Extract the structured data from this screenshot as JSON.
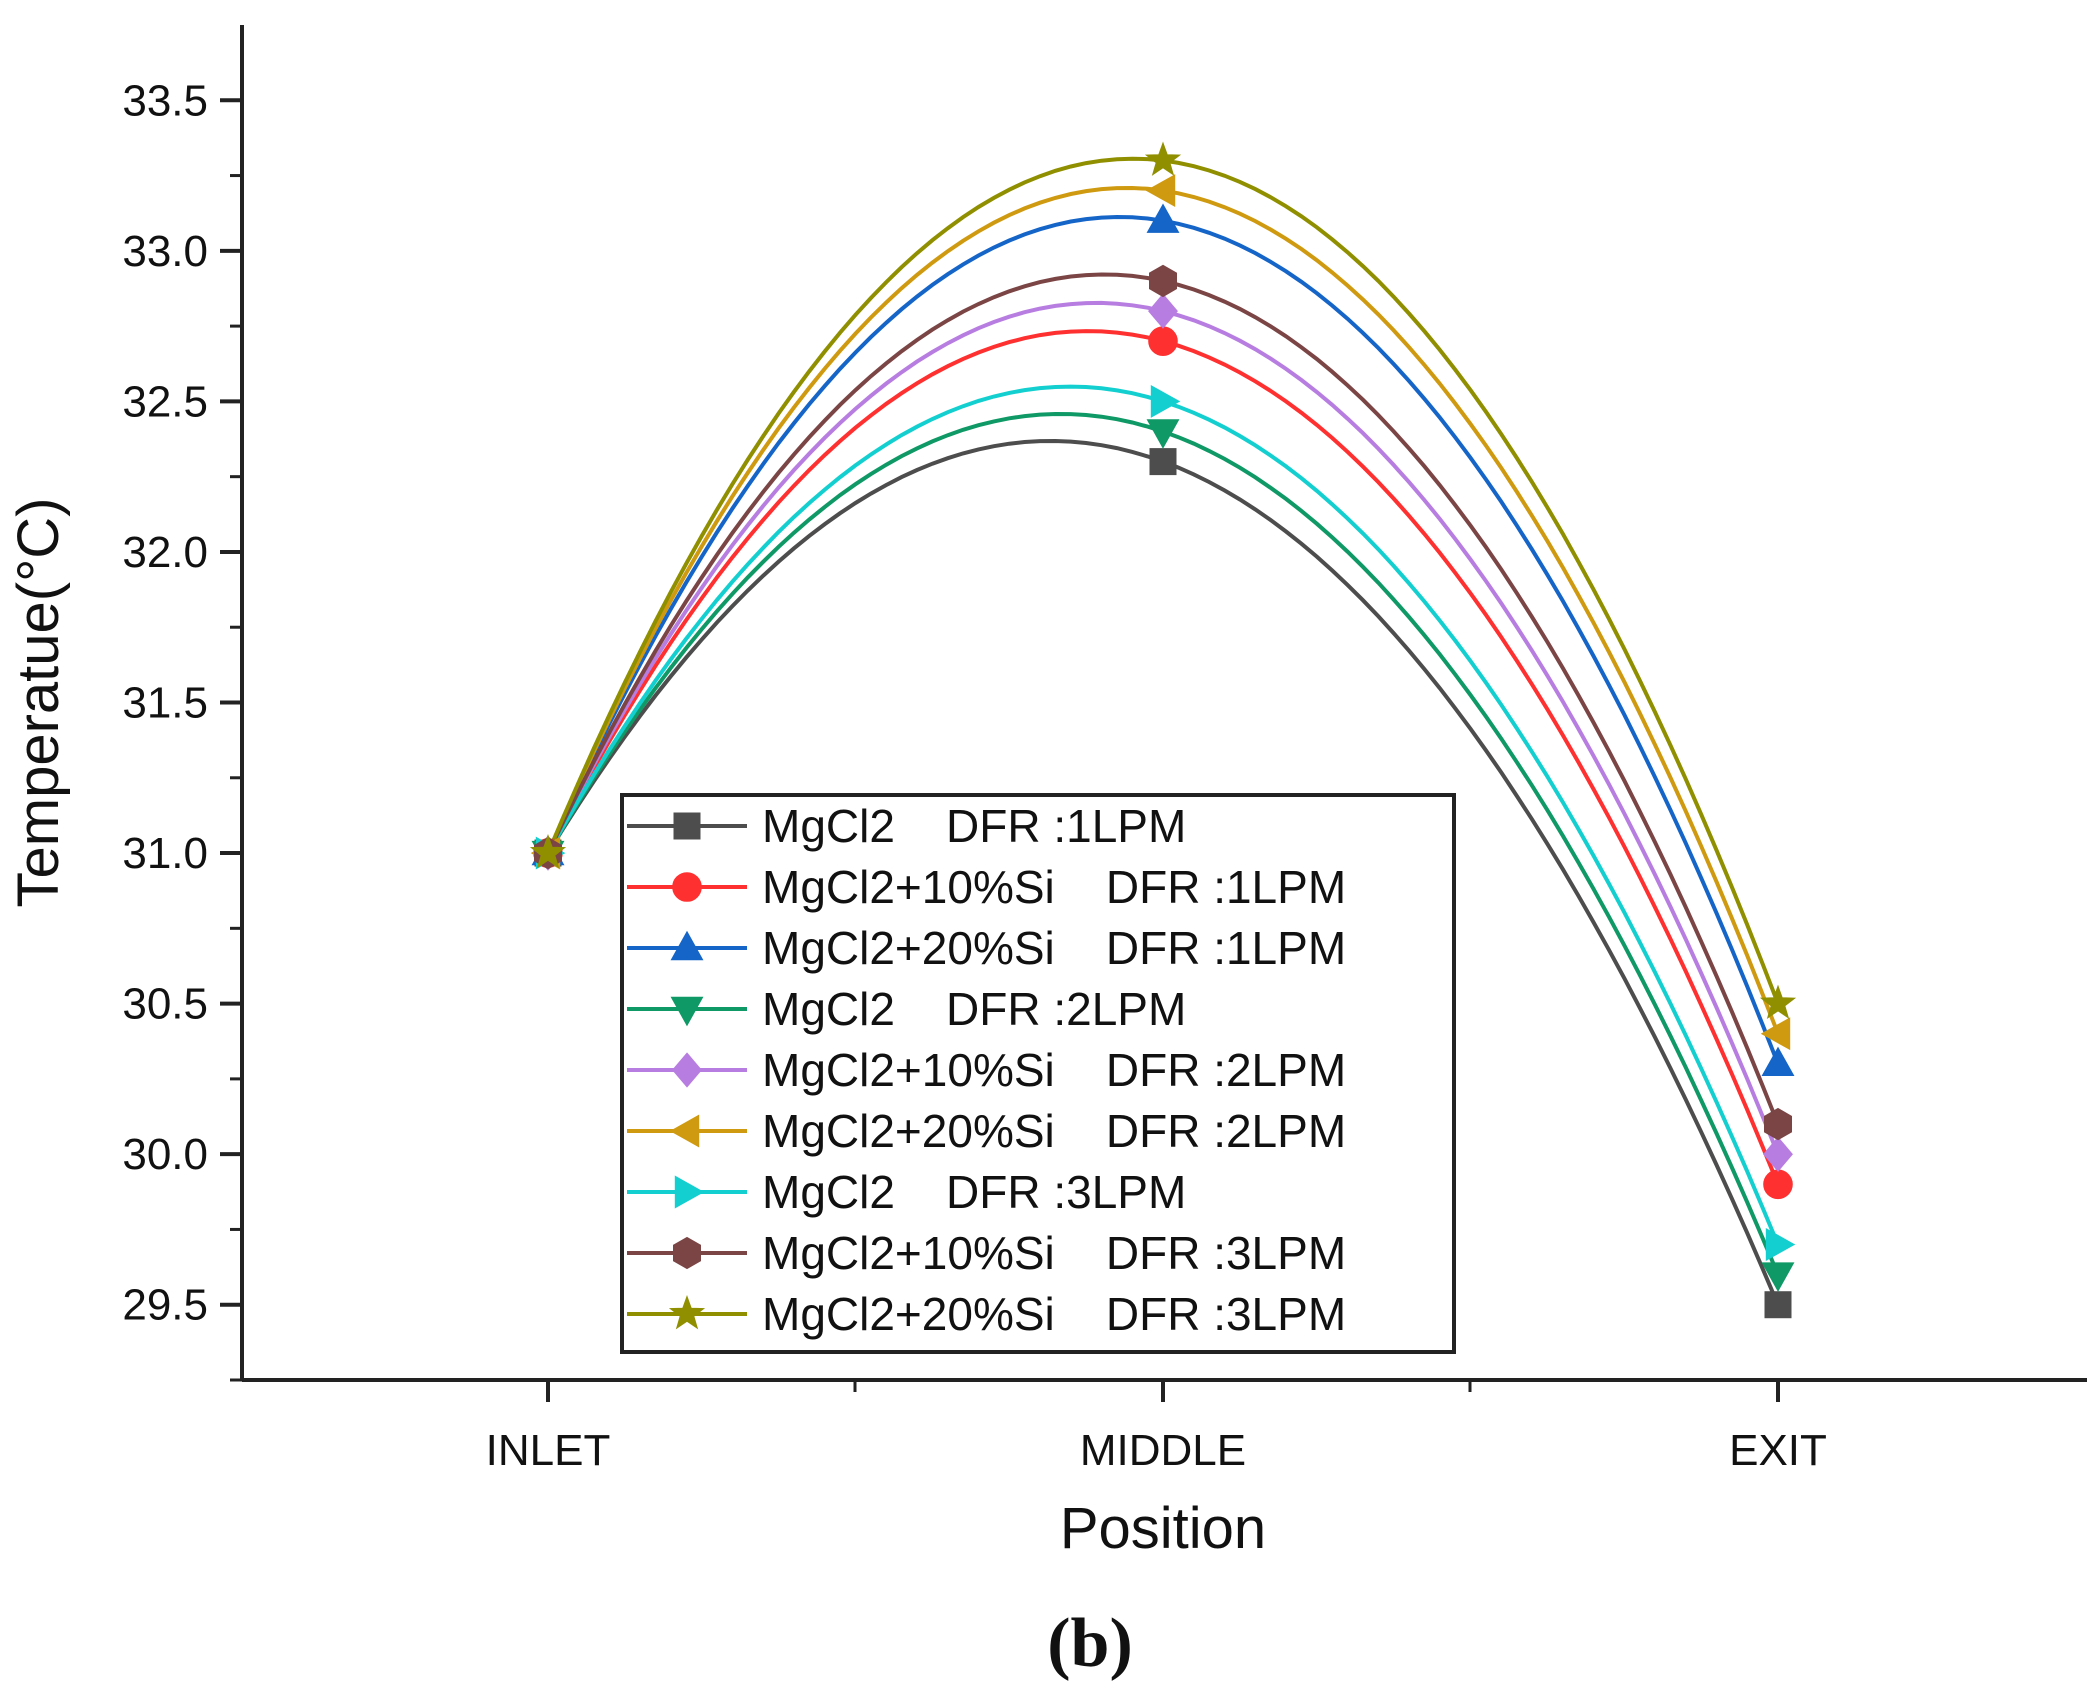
{
  "chart_data": {
    "type": "line",
    "panel_label": "(b)",
    "xlabel": "Position",
    "ylabel": "Temperatue(°C)",
    "categories": [
      "INLET",
      "MIDDLE",
      "EXIT"
    ],
    "ylim": [
      29.25,
      33.75
    ],
    "yticks": [
      "29.5",
      "30.0",
      "30.5",
      "31.0",
      "31.5",
      "32.0",
      "32.5",
      "33.0",
      "33.5"
    ],
    "legend_position": "center-right",
    "series": [
      {
        "name": "MgCl2    DFR :1LPM",
        "color": "#4d4d4d",
        "marker": "square",
        "values": [
          31.0,
          32.3,
          29.5
        ]
      },
      {
        "name": "MgCl2+10%Si    DFR :1LPM",
        "color": "#ff3030",
        "marker": "circle",
        "values": [
          31.0,
          32.7,
          29.9
        ]
      },
      {
        "name": "MgCl2+20%Si    DFR :1LPM",
        "color": "#1565c8",
        "marker": "triangle-up",
        "values": [
          31.0,
          33.1,
          30.3
        ]
      },
      {
        "name": "MgCl2    DFR :2LPM",
        "color": "#0f9966",
        "marker": "triangle-down",
        "values": [
          31.0,
          32.4,
          29.6
        ]
      },
      {
        "name": "MgCl2+10%Si    DFR :2LPM",
        "color": "#b87de0",
        "marker": "diamond",
        "values": [
          31.0,
          32.8,
          30.0
        ]
      },
      {
        "name": "MgCl2+20%Si    DFR :2LPM",
        "color": "#cf9a10",
        "marker": "triangle-left",
        "values": [
          31.0,
          33.2,
          30.4
        ]
      },
      {
        "name": "MgCl2    DFR :3LPM",
        "color": "#14cfcf",
        "marker": "triangle-right",
        "values": [
          31.0,
          32.5,
          29.7
        ]
      },
      {
        "name": "MgCl2+10%Si    DFR :3LPM",
        "color": "#7b4545",
        "marker": "hexagon",
        "values": [
          31.0,
          32.9,
          30.1
        ]
      },
      {
        "name": "MgCl2+20%Si    DFR :3LPM",
        "color": "#8f8f00",
        "marker": "star",
        "values": [
          31.0,
          33.3,
          30.5
        ]
      }
    ]
  }
}
